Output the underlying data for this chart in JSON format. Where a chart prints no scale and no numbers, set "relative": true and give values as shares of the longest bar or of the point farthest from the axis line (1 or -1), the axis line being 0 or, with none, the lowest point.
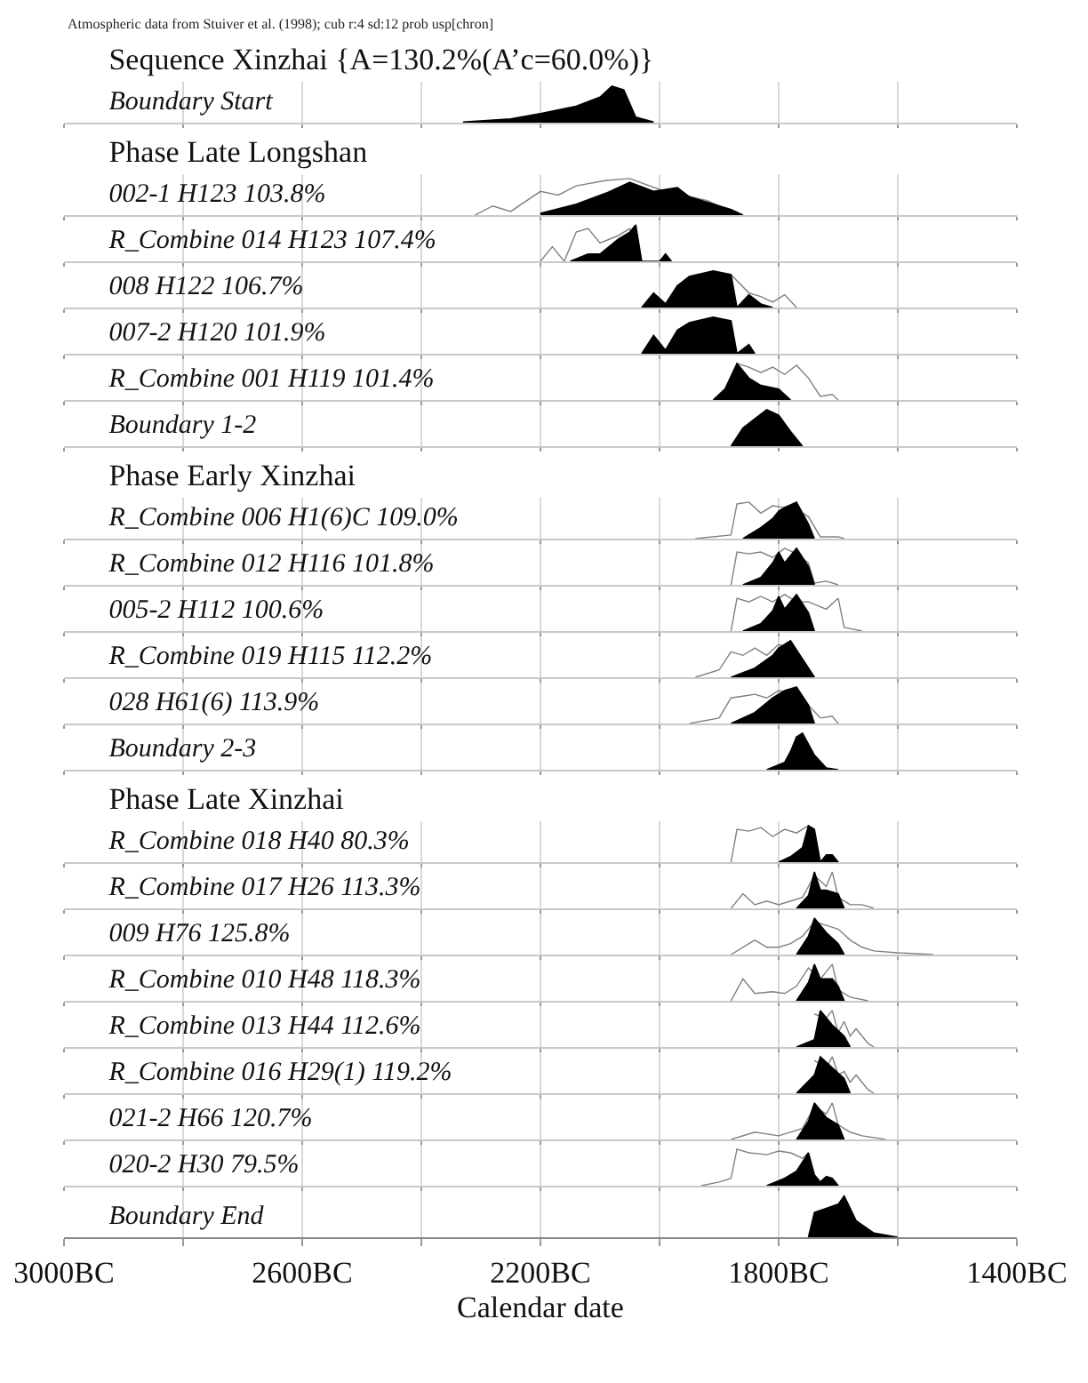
{
  "chart_data": [
    {
      "type": "other",
      "title": "Sequence Xinzhai {A=130.2%(A’c=60.0%)}",
      "annotations": [
        "Atmospheric data from Stuiver et al. (1998); cub r:4 sd:12 prob usp[chron]"
      ]
    },
    {
      "type": "area",
      "title": "Boundary Start",
      "xlim": [
        -3000,
        -1400
      ],
      "xticks": [
        {
          "value": -3000,
          "label": null
        },
        {
          "value": -2800,
          "label": null
        },
        {
          "value": -2600,
          "label": null
        },
        {
          "value": -2400,
          "label": null
        },
        {
          "value": -2200,
          "label": null
        },
        {
          "value": -2000,
          "label": null
        },
        {
          "value": -1800,
          "label": null
        },
        {
          "value": -1600,
          "label": null
        },
        {
          "value": -1400,
          "label": null
        }
      ],
      "grid": "x",
      "relative": true,
      "tick_labels": false,
      "series": [
        {
          "type": "area",
          "color": "#000000",
          "x": [
            -2330,
            -2250,
            -2200,
            -2140,
            -2100,
            -2080,
            -2060,
            -2040,
            -2010
          ],
          "values": [
            0.02,
            0.1,
            0.25,
            0.45,
            0.7,
            1,
            0.9,
            0.15,
            0.02
          ]
        }
      ]
    },
    {
      "type": "other",
      "title": "Phase Late Longshan"
    },
    {
      "type": "area",
      "title": "002-1 H123 103.8%",
      "xlim": [
        -3000,
        -1400
      ],
      "xticks": [
        {
          "value": -3000,
          "label": null
        },
        {
          "value": -2800,
          "label": null
        },
        {
          "value": -2600,
          "label": null
        },
        {
          "value": -2400,
          "label": null
        },
        {
          "value": -2200,
          "label": null
        },
        {
          "value": -2000,
          "label": null
        },
        {
          "value": -1800,
          "label": null
        },
        {
          "value": -1600,
          "label": null
        },
        {
          "value": -1400,
          "label": null
        }
      ],
      "grid": "x",
      "relative": true,
      "tick_labels": false,
      "series": [
        {
          "type": "line",
          "color": "#808080",
          "x": [
            -2310,
            -2280,
            -2250,
            -2200,
            -2170,
            -2140,
            -2090,
            -2050,
            -2000,
            -1960,
            -1920,
            -1880
          ],
          "values": [
            0,
            0.25,
            0.1,
            0.65,
            0.55,
            0.8,
            0.95,
            1,
            0.7,
            0.55,
            0.4,
            0.1
          ]
        },
        {
          "type": "area",
          "color": "#000000",
          "x": [
            -2200,
            -2140,
            -2090,
            -2050,
            -2010,
            -1970,
            -1950,
            -1920,
            -1880,
            -1860
          ],
          "values": [
            0.05,
            0.3,
            0.6,
            0.9,
            0.65,
            0.75,
            0.5,
            0.35,
            0.15,
            0
          ]
        }
      ]
    },
    {
      "type": "area",
      "title": "R_Combine 014 H123 107.4%",
      "xlim": [
        -3000,
        -1400
      ],
      "xticks": [
        {
          "value": -3000,
          "label": null
        },
        {
          "value": -2800,
          "label": null
        },
        {
          "value": -2600,
          "label": null
        },
        {
          "value": -2400,
          "label": null
        },
        {
          "value": -2200,
          "label": null
        },
        {
          "value": -2000,
          "label": null
        },
        {
          "value": -1800,
          "label": null
        },
        {
          "value": -1600,
          "label": null
        },
        {
          "value": -1400,
          "label": null
        }
      ],
      "grid": "x",
      "relative": true,
      "tick_labels": false,
      "series": [
        {
          "type": "line",
          "color": "#808080",
          "x": [
            -2200,
            -2180,
            -2160,
            -2140,
            -2120,
            -2100,
            -2070,
            -2050,
            -2030
          ],
          "values": [
            0,
            0.4,
            0,
            0.8,
            0.9,
            0.5,
            0.7,
            0.9,
            0
          ]
        },
        {
          "type": "area",
          "color": "#000000",
          "x": [
            -2150,
            -2120,
            -2100,
            -2070,
            -2050,
            -2040,
            -2030,
            -2000,
            -1990,
            -1980
          ],
          "values": [
            0,
            0.2,
            0.2,
            0.6,
            0.8,
            1,
            0,
            0,
            0.2,
            0
          ]
        }
      ]
    },
    {
      "type": "area",
      "title": "008 H122 106.7%",
      "xlim": [
        -3000,
        -1400
      ],
      "xticks": [
        {
          "value": -3000,
          "label": null
        },
        {
          "value": -2800,
          "label": null
        },
        {
          "value": -2600,
          "label": null
        },
        {
          "value": -2400,
          "label": null
        },
        {
          "value": -2200,
          "label": null
        },
        {
          "value": -2000,
          "label": null
        },
        {
          "value": -1800,
          "label": null
        },
        {
          "value": -1600,
          "label": null
        },
        {
          "value": -1400,
          "label": null
        }
      ],
      "grid": "x",
      "relative": true,
      "tick_labels": false,
      "series": [
        {
          "type": "line",
          "color": "#808080",
          "x": [
            -1880,
            -1850,
            -1830,
            -1810,
            -1790,
            -1770
          ],
          "values": [
            0.9,
            0.4,
            0.3,
            0.15,
            0.35,
            0
          ]
        },
        {
          "type": "area",
          "color": "#000000",
          "x": [
            -2030,
            -2010,
            -1990,
            -1970,
            -1950,
            -1910,
            -1880,
            -1870,
            -1850,
            -1830,
            -1810
          ],
          "values": [
            0,
            0.4,
            0.1,
            0.6,
            0.85,
            1,
            0.9,
            0,
            0.35,
            0.1,
            0
          ]
        }
      ]
    },
    {
      "type": "area",
      "title": "007-2 H120 101.9%",
      "xlim": [
        -3000,
        -1400
      ],
      "xticks": [
        {
          "value": -3000,
          "label": null
        },
        {
          "value": -2800,
          "label": null
        },
        {
          "value": -2600,
          "label": null
        },
        {
          "value": -2400,
          "label": null
        },
        {
          "value": -2200,
          "label": null
        },
        {
          "value": -2000,
          "label": null
        },
        {
          "value": -1800,
          "label": null
        },
        {
          "value": -1600,
          "label": null
        },
        {
          "value": -1400,
          "label": null
        }
      ],
      "grid": "x",
      "relative": true,
      "tick_labels": false,
      "series": [
        {
          "type": "area",
          "color": "#000000",
          "x": [
            -2030,
            -2010,
            -1990,
            -1970,
            -1950,
            -1910,
            -1880,
            -1870,
            -1850,
            -1840
          ],
          "values": [
            0,
            0.5,
            0.1,
            0.65,
            0.85,
            1,
            0.9,
            0,
            0.25,
            0
          ]
        }
      ]
    },
    {
      "type": "area",
      "title": "R_Combine 001 H119 101.4%",
      "xlim": [
        -3000,
        -1400
      ],
      "xticks": [
        {
          "value": -3000,
          "label": null
        },
        {
          "value": -2800,
          "label": null
        },
        {
          "value": -2600,
          "label": null
        },
        {
          "value": -2400,
          "label": null
        },
        {
          "value": -2200,
          "label": null
        },
        {
          "value": -2000,
          "label": null
        },
        {
          "value": -1800,
          "label": null
        },
        {
          "value": -1600,
          "label": null
        },
        {
          "value": -1400,
          "label": null
        }
      ],
      "grid": "x",
      "relative": true,
      "tick_labels": false,
      "series": [
        {
          "type": "line",
          "color": "#808080",
          "x": [
            -1870,
            -1850,
            -1830,
            -1810,
            -1790,
            -1770,
            -1750,
            -1730,
            -1710,
            -1700
          ],
          "values": [
            1,
            0.9,
            0.75,
            0.9,
            0.7,
            0.95,
            0.6,
            0.1,
            0.15,
            0
          ]
        },
        {
          "type": "area",
          "color": "#000000",
          "x": [
            -1910,
            -1890,
            -1870,
            -1850,
            -1830,
            -1800,
            -1780
          ],
          "values": [
            0,
            0.3,
            1,
            0.6,
            0.4,
            0.3,
            0
          ]
        }
      ]
    },
    {
      "type": "area",
      "title": "Boundary 1-2",
      "xlim": [
        -3000,
        -1400
      ],
      "xticks": [
        {
          "value": -3000,
          "label": null
        },
        {
          "value": -2800,
          "label": null
        },
        {
          "value": -2600,
          "label": null
        },
        {
          "value": -2400,
          "label": null
        },
        {
          "value": -2200,
          "label": null
        },
        {
          "value": -2000,
          "label": null
        },
        {
          "value": -1800,
          "label": null
        },
        {
          "value": -1600,
          "label": null
        },
        {
          "value": -1400,
          "label": null
        }
      ],
      "grid": "x",
      "relative": true,
      "tick_labels": false,
      "series": [
        {
          "type": "area",
          "color": "#000000",
          "x": [
            -1880,
            -1860,
            -1840,
            -1820,
            -1800,
            -1780,
            -1760
          ],
          "values": [
            0,
            0.5,
            0.75,
            1,
            0.85,
            0.4,
            0
          ]
        }
      ]
    },
    {
      "type": "other",
      "title": "Phase Early Xinzhai"
    },
    {
      "type": "area",
      "title": "R_Combine 006 H1(6)C 109.0%",
      "xlim": [
        -3000,
        -1400
      ],
      "xticks": [
        {
          "value": -3000,
          "label": null
        },
        {
          "value": -2800,
          "label": null
        },
        {
          "value": -2600,
          "label": null
        },
        {
          "value": -2400,
          "label": null
        },
        {
          "value": -2200,
          "label": null
        },
        {
          "value": -2000,
          "label": null
        },
        {
          "value": -1800,
          "label": null
        },
        {
          "value": -1600,
          "label": null
        },
        {
          "value": -1400,
          "label": null
        }
      ],
      "grid": "x",
      "relative": true,
      "tick_labels": false,
      "series": [
        {
          "type": "line",
          "color": "#808080",
          "x": [
            -1940,
            -1880,
            -1870,
            -1850,
            -1830,
            -1810,
            -1790,
            -1770,
            -1750,
            -1730,
            -1700,
            -1690
          ],
          "values": [
            0,
            0.1,
            0.95,
            1,
            0.7,
            0.9,
            0.85,
            0.8,
            0.6,
            0.05,
            0.05,
            0
          ]
        },
        {
          "type": "area",
          "color": "#000000",
          "x": [
            -1860,
            -1830,
            -1810,
            -1800,
            -1790,
            -1770,
            -1750,
            -1740
          ],
          "values": [
            0,
            0.3,
            0.55,
            0.75,
            0.85,
            1,
            0.4,
            0
          ]
        }
      ]
    },
    {
      "type": "area",
      "title": "R_Combine 012 H116 101.8%",
      "xlim": [
        -3000,
        -1400
      ],
      "xticks": [
        {
          "value": -3000,
          "label": null
        },
        {
          "value": -2800,
          "label": null
        },
        {
          "value": -2600,
          "label": null
        },
        {
          "value": -2400,
          "label": null
        },
        {
          "value": -2200,
          "label": null
        },
        {
          "value": -2000,
          "label": null
        },
        {
          "value": -1800,
          "label": null
        },
        {
          "value": -1600,
          "label": null
        },
        {
          "value": -1400,
          "label": null
        }
      ],
      "grid": "x",
      "relative": true,
      "tick_labels": false,
      "series": [
        {
          "type": "line",
          "color": "#808080",
          "x": [
            -1880,
            -1870,
            -1850,
            -1830,
            -1810,
            -1790,
            -1770,
            -1750,
            -1740,
            -1720,
            -1700
          ],
          "values": [
            0,
            0.9,
            0.85,
            0.9,
            0.75,
            1,
            0.85,
            0.6,
            0.05,
            0.1,
            0
          ]
        },
        {
          "type": "area",
          "color": "#000000",
          "x": [
            -1860,
            -1830,
            -1810,
            -1800,
            -1790,
            -1770,
            -1750,
            -1740
          ],
          "values": [
            0,
            0.2,
            0.6,
            0.9,
            0.6,
            1,
            0.5,
            0
          ]
        }
      ]
    },
    {
      "type": "area",
      "title": "005-2 H112 100.6%",
      "xlim": [
        -3000,
        -1400
      ],
      "xticks": [
        {
          "value": -3000,
          "label": null
        },
        {
          "value": -2800,
          "label": null
        },
        {
          "value": -2600,
          "label": null
        },
        {
          "value": -2400,
          "label": null
        },
        {
          "value": -2200,
          "label": null
        },
        {
          "value": -2000,
          "label": null
        },
        {
          "value": -1800,
          "label": null
        },
        {
          "value": -1600,
          "label": null
        },
        {
          "value": -1400,
          "label": null
        }
      ],
      "grid": "x",
      "relative": true,
      "tick_labels": false,
      "series": [
        {
          "type": "line",
          "color": "#808080",
          "x": [
            -1880,
            -1870,
            -1850,
            -1830,
            -1810,
            -1790,
            -1770,
            -1750,
            -1720,
            -1700,
            -1690,
            -1660
          ],
          "values": [
            0,
            0.9,
            0.8,
            0.95,
            0.8,
            1,
            0.8,
            0.8,
            0.6,
            0.9,
            0.1,
            0
          ]
        },
        {
          "type": "area",
          "color": "#000000",
          "x": [
            -1860,
            -1830,
            -1810,
            -1800,
            -1790,
            -1770,
            -1750,
            -1740
          ],
          "values": [
            0,
            0.2,
            0.55,
            0.95,
            0.6,
            1,
            0.5,
            0
          ]
        }
      ]
    },
    {
      "type": "area",
      "title": "R_Combine 019 H115 112.2%",
      "xlim": [
        -3000,
        -1400
      ],
      "xticks": [
        {
          "value": -3000,
          "label": null
        },
        {
          "value": -2800,
          "label": null
        },
        {
          "value": -2600,
          "label": null
        },
        {
          "value": -2400,
          "label": null
        },
        {
          "value": -2200,
          "label": null
        },
        {
          "value": -2000,
          "label": null
        },
        {
          "value": -1800,
          "label": null
        },
        {
          "value": -1600,
          "label": null
        },
        {
          "value": -1400,
          "label": null
        }
      ],
      "grid": "x",
      "relative": true,
      "tick_labels": false,
      "series": [
        {
          "type": "line",
          "color": "#808080",
          "x": [
            -1940,
            -1900,
            -1880,
            -1860,
            -1840,
            -1820,
            -1800,
            -1780,
            -1760,
            -1740
          ],
          "values": [
            0,
            0.2,
            0.7,
            0.6,
            0.8,
            0.6,
            0.9,
            0.8,
            0.5,
            0
          ]
        },
        {
          "type": "area",
          "color": "#000000",
          "x": [
            -1880,
            -1840,
            -1810,
            -1800,
            -1780,
            -1760,
            -1740
          ],
          "values": [
            0,
            0.25,
            0.6,
            0.8,
            1,
            0.5,
            0
          ]
        }
      ]
    },
    {
      "type": "area",
      "title": "028 H61(6) 113.9%",
      "xlim": [
        -3000,
        -1400
      ],
      "xticks": [
        {
          "value": -3000,
          "label": null
        },
        {
          "value": -2800,
          "label": null
        },
        {
          "value": -2600,
          "label": null
        },
        {
          "value": -2400,
          "label": null
        },
        {
          "value": -2200,
          "label": null
        },
        {
          "value": -2000,
          "label": null
        },
        {
          "value": -1800,
          "label": null
        },
        {
          "value": -1600,
          "label": null
        },
        {
          "value": -1400,
          "label": null
        }
      ],
      "grid": "x",
      "relative": true,
      "tick_labels": false,
      "series": [
        {
          "type": "line",
          "color": "#808080",
          "x": [
            -1950,
            -1900,
            -1880,
            -1860,
            -1840,
            -1820,
            -1800,
            -1780,
            -1750,
            -1730,
            -1710,
            -1700
          ],
          "values": [
            0,
            0.15,
            0.7,
            0.75,
            0.8,
            0.7,
            0.9,
            0.85,
            0.5,
            0.15,
            0.2,
            0
          ]
        },
        {
          "type": "area",
          "color": "#000000",
          "x": [
            -1880,
            -1840,
            -1810,
            -1790,
            -1770,
            -1750,
            -1740
          ],
          "values": [
            0,
            0.3,
            0.7,
            0.9,
            1,
            0.5,
            0
          ]
        }
      ]
    },
    {
      "type": "area",
      "title": "Boundary 2-3",
      "xlim": [
        -3000,
        -1400
      ],
      "xticks": [
        {
          "value": -3000,
          "label": null
        },
        {
          "value": -2800,
          "label": null
        },
        {
          "value": -2600,
          "label": null
        },
        {
          "value": -2400,
          "label": null
        },
        {
          "value": -2200,
          "label": null
        },
        {
          "value": -2000,
          "label": null
        },
        {
          "value": -1800,
          "label": null
        },
        {
          "value": -1600,
          "label": null
        },
        {
          "value": -1400,
          "label": null
        }
      ],
      "grid": "x",
      "relative": true,
      "tick_labels": false,
      "series": [
        {
          "type": "area",
          "color": "#000000",
          "x": [
            -1820,
            -1790,
            -1780,
            -1770,
            -1760,
            -1740,
            -1720,
            -1700
          ],
          "values": [
            0,
            0.2,
            0.5,
            0.9,
            1,
            0.4,
            0.05,
            0
          ]
        }
      ]
    },
    {
      "type": "other",
      "title": "Phase Late Xinzhai"
    },
    {
      "type": "area",
      "title": "R_Combine 018 H40 80.3%",
      "xlim": [
        -3000,
        -1400
      ],
      "xticks": [
        {
          "value": -3000,
          "label": null
        },
        {
          "value": -2800,
          "label": null
        },
        {
          "value": -2600,
          "label": null
        },
        {
          "value": -2400,
          "label": null
        },
        {
          "value": -2200,
          "label": null
        },
        {
          "value": -2000,
          "label": null
        },
        {
          "value": -1800,
          "label": null
        },
        {
          "value": -1600,
          "label": null
        },
        {
          "value": -1400,
          "label": null
        }
      ],
      "grid": "x",
      "relative": true,
      "tick_labels": false,
      "series": [
        {
          "type": "line",
          "color": "#808080",
          "x": [
            -1880,
            -1870,
            -1850,
            -1830,
            -1810,
            -1790,
            -1770,
            -1750
          ],
          "values": [
            0,
            0.9,
            0.85,
            0.95,
            0.7,
            0.9,
            0.8,
            1
          ]
        },
        {
          "type": "area",
          "color": "#000000",
          "x": [
            -1800,
            -1780,
            -1760,
            -1750,
            -1740,
            -1730,
            -1720,
            -1710,
            -1700
          ],
          "values": [
            0,
            0.15,
            0.4,
            1,
            0.9,
            0,
            0.2,
            0.2,
            0
          ]
        }
      ]
    },
    {
      "type": "area",
      "title": "R_Combine 017 H26 113.3%",
      "xlim": [
        -3000,
        -1400
      ],
      "xticks": [
        {
          "value": -3000,
          "label": null
        },
        {
          "value": -2800,
          "label": null
        },
        {
          "value": -2600,
          "label": null
        },
        {
          "value": -2400,
          "label": null
        },
        {
          "value": -2200,
          "label": null
        },
        {
          "value": -2000,
          "label": null
        },
        {
          "value": -1800,
          "label": null
        },
        {
          "value": -1600,
          "label": null
        },
        {
          "value": -1400,
          "label": null
        }
      ],
      "grid": "x",
      "relative": true,
      "tick_labels": false,
      "series": [
        {
          "type": "line",
          "color": "#808080",
          "x": [
            -1880,
            -1860,
            -1840,
            -1820,
            -1800,
            -1780,
            -1760,
            -1740,
            -1720,
            -1710,
            -1700,
            -1680,
            -1660,
            -1640
          ],
          "values": [
            0,
            0.4,
            0.1,
            0.2,
            0.1,
            0.2,
            0.3,
            0.9,
            0.6,
            1,
            0.3,
            0.1,
            0.1,
            0
          ]
        },
        {
          "type": "area",
          "color": "#000000",
          "x": [
            -1770,
            -1750,
            -1740,
            -1730,
            -1720,
            -1700,
            -1690
          ],
          "values": [
            0,
            0.35,
            1,
            0.5,
            0.5,
            0.4,
            0
          ]
        }
      ]
    },
    {
      "type": "area",
      "title": "009 H76 125.8%",
      "xlim": [
        -3000,
        -1400
      ],
      "xticks": [
        {
          "value": -3000,
          "label": null
        },
        {
          "value": -2800,
          "label": null
        },
        {
          "value": -2600,
          "label": null
        },
        {
          "value": -2400,
          "label": null
        },
        {
          "value": -2200,
          "label": null
        },
        {
          "value": -2000,
          "label": null
        },
        {
          "value": -1800,
          "label": null
        },
        {
          "value": -1600,
          "label": null
        },
        {
          "value": -1400,
          "label": null
        }
      ],
      "grid": "x",
      "relative": true,
      "tick_labels": false,
      "series": [
        {
          "type": "line",
          "color": "#808080",
          "x": [
            -1880,
            -1840,
            -1820,
            -1800,
            -1780,
            -1760,
            -1740,
            -1720,
            -1700,
            -1680,
            -1660,
            -1640,
            -1600,
            -1540
          ],
          "values": [
            0,
            0.4,
            0.2,
            0.2,
            0.3,
            0.5,
            0.9,
            0.8,
            0.7,
            0.4,
            0.2,
            0.1,
            0.05,
            0
          ]
        },
        {
          "type": "area",
          "color": "#000000",
          "x": [
            -1770,
            -1750,
            -1740,
            -1720,
            -1700,
            -1690
          ],
          "values": [
            0,
            0.5,
            1,
            0.6,
            0.3,
            0
          ]
        }
      ]
    },
    {
      "type": "area",
      "title": "R_Combine 010 H48 118.3%",
      "xlim": [
        -3000,
        -1400
      ],
      "xticks": [
        {
          "value": -3000,
          "label": null
        },
        {
          "value": -2800,
          "label": null
        },
        {
          "value": -2600,
          "label": null
        },
        {
          "value": -2400,
          "label": null
        },
        {
          "value": -2200,
          "label": null
        },
        {
          "value": -2000,
          "label": null
        },
        {
          "value": -1800,
          "label": null
        },
        {
          "value": -1600,
          "label": null
        },
        {
          "value": -1400,
          "label": null
        }
      ],
      "grid": "x",
      "relative": true,
      "tick_labels": false,
      "series": [
        {
          "type": "line",
          "color": "#808080",
          "x": [
            -1880,
            -1860,
            -1840,
            -1810,
            -1790,
            -1770,
            -1750,
            -1730,
            -1710,
            -1700,
            -1680,
            -1650
          ],
          "values": [
            0,
            0.6,
            0.2,
            0.25,
            0.2,
            0.4,
            0.9,
            0.6,
            1,
            0.3,
            0.1,
            0
          ]
        },
        {
          "type": "area",
          "color": "#000000",
          "x": [
            -1770,
            -1750,
            -1740,
            -1730,
            -1710,
            -1700,
            -1690
          ],
          "values": [
            0,
            0.5,
            1,
            0.6,
            0.6,
            0.4,
            0
          ]
        }
      ]
    },
    {
      "type": "area",
      "title": "R_Combine 013 H44 112.6%",
      "xlim": [
        -3000,
        -1400
      ],
      "xticks": [
        {
          "value": -3000,
          "label": null
        },
        {
          "value": -2800,
          "label": null
        },
        {
          "value": -2600,
          "label": null
        },
        {
          "value": -2400,
          "label": null
        },
        {
          "value": -2200,
          "label": null
        },
        {
          "value": -2000,
          "label": null
        },
        {
          "value": -1800,
          "label": null
        },
        {
          "value": -1600,
          "label": null
        },
        {
          "value": -1400,
          "label": null
        }
      ],
      "grid": "x",
      "relative": true,
      "tick_labels": false,
      "series": [
        {
          "type": "line",
          "color": "#808080",
          "x": [
            -1740,
            -1720,
            -1710,
            -1700,
            -1690,
            -1680,
            -1670,
            -1650,
            -1640
          ],
          "values": [
            0.9,
            0.8,
            1,
            0.4,
            0.7,
            0.3,
            0.5,
            0.1,
            0
          ]
        },
        {
          "type": "area",
          "color": "#000000",
          "x": [
            -1770,
            -1740,
            -1730,
            -1710,
            -1690,
            -1680
          ],
          "values": [
            0,
            0.2,
            1,
            0.6,
            0.3,
            0
          ]
        }
      ]
    },
    {
      "type": "area",
      "title": "R_Combine 016 H29(1) 119.2%",
      "xlim": [
        -3000,
        -1400
      ],
      "xticks": [
        {
          "value": -3000,
          "label": null
        },
        {
          "value": -2800,
          "label": null
        },
        {
          "value": -2600,
          "label": null
        },
        {
          "value": -2400,
          "label": null
        },
        {
          "value": -2200,
          "label": null
        },
        {
          "value": -2000,
          "label": null
        },
        {
          "value": -1800,
          "label": null
        },
        {
          "value": -1600,
          "label": null
        },
        {
          "value": -1400,
          "label": null
        }
      ],
      "grid": "x",
      "relative": true,
      "tick_labels": false,
      "series": [
        {
          "type": "line",
          "color": "#808080",
          "x": [
            -1740,
            -1720,
            -1710,
            -1700,
            -1690,
            -1680,
            -1670,
            -1650,
            -1640
          ],
          "values": [
            0.9,
            0.7,
            1,
            0.5,
            0.6,
            0.3,
            0.5,
            0.1,
            0
          ]
        },
        {
          "type": "area",
          "color": "#000000",
          "x": [
            -1770,
            -1740,
            -1730,
            -1710,
            -1690,
            -1680
          ],
          "values": [
            0,
            0.5,
            1,
            0.7,
            0.4,
            0
          ]
        }
      ]
    },
    {
      "type": "area",
      "title": "021-2 H66 120.7%",
      "xlim": [
        -3000,
        -1400
      ],
      "xticks": [
        {
          "value": -3000,
          "label": null
        },
        {
          "value": -2800,
          "label": null
        },
        {
          "value": -2600,
          "label": null
        },
        {
          "value": -2400,
          "label": null
        },
        {
          "value": -2200,
          "label": null
        },
        {
          "value": -2000,
          "label": null
        },
        {
          "value": -1800,
          "label": null
        },
        {
          "value": -1600,
          "label": null
        },
        {
          "value": -1400,
          "label": null
        }
      ],
      "grid": "x",
      "relative": true,
      "tick_labels": false,
      "series": [
        {
          "type": "line",
          "color": "#808080",
          "x": [
            -1880,
            -1840,
            -1800,
            -1760,
            -1740,
            -1720,
            -1710,
            -1700,
            -1680,
            -1660,
            -1620
          ],
          "values": [
            0,
            0.2,
            0.1,
            0.3,
            0.9,
            0.7,
            1,
            0.4,
            0.2,
            0.1,
            0
          ]
        },
        {
          "type": "area",
          "color": "#000000",
          "x": [
            -1770,
            -1750,
            -1740,
            -1720,
            -1700,
            -1690
          ],
          "values": [
            0,
            0.5,
            1,
            0.6,
            0.4,
            0
          ]
        }
      ]
    },
    {
      "type": "area",
      "title": "020-2 H30 79.5%",
      "xlim": [
        -3000,
        -1400
      ],
      "xticks": [
        {
          "value": -3000,
          "label": null
        },
        {
          "value": -2800,
          "label": null
        },
        {
          "value": -2600,
          "label": null
        },
        {
          "value": -2400,
          "label": null
        },
        {
          "value": -2200,
          "label": null
        },
        {
          "value": -2000,
          "label": null
        },
        {
          "value": -1800,
          "label": null
        },
        {
          "value": -1600,
          "label": null
        },
        {
          "value": -1400,
          "label": null
        }
      ],
      "grid": "x",
      "relative": true,
      "tick_labels": false,
      "series": [
        {
          "type": "line",
          "color": "#808080",
          "x": [
            -1930,
            -1900,
            -1880,
            -1870,
            -1850,
            -1820,
            -1800,
            -1780,
            -1760,
            -1750
          ],
          "values": [
            0,
            0.1,
            0.2,
            1,
            0.9,
            0.85,
            0.95,
            0.9,
            0.75,
            0.9
          ]
        },
        {
          "type": "area",
          "color": "#000000",
          "x": [
            -1820,
            -1790,
            -1770,
            -1750,
            -1740,
            -1730,
            -1720,
            -1710,
            -1700
          ],
          "values": [
            0,
            0.2,
            0.4,
            0.9,
            0.3,
            0.1,
            0.25,
            0.2,
            0
          ]
        }
      ]
    },
    {
      "type": "area",
      "title": "Boundary End",
      "xlabel": "Calendar date",
      "xlim": [
        -3000,
        -1400
      ],
      "xticks": [
        {
          "value": -3000,
          "label": "3000BC"
        },
        {
          "value": -2800,
          "label": null
        },
        {
          "value": -2600,
          "label": "2600BC"
        },
        {
          "value": -2400,
          "label": null
        },
        {
          "value": -2200,
          "label": "2200BC"
        },
        {
          "value": -2000,
          "label": null
        },
        {
          "value": -1800,
          "label": "1800BC"
        },
        {
          "value": -1600,
          "label": null
        },
        {
          "value": -1400,
          "label": "1400BC"
        }
      ],
      "grid": "x",
      "relative": true,
      "tick_labels": "x",
      "series": [
        {
          "type": "area",
          "color": "#000000",
          "x": [
            -1750,
            -1740,
            -1720,
            -1700,
            -1690,
            -1670,
            -1640,
            -1600
          ],
          "values": [
            0,
            0.6,
            0.7,
            0.8,
            1,
            0.4,
            0.1,
            0
          ]
        }
      ]
    }
  ]
}
